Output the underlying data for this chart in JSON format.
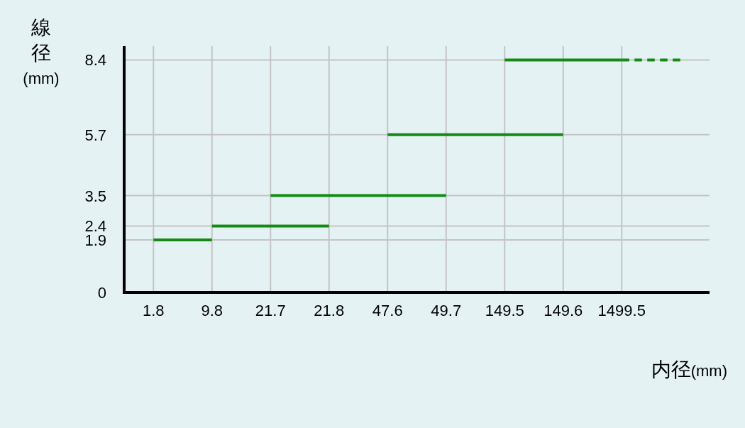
{
  "chart_data": {
    "type": "line",
    "xlabel": "内径(mm)",
    "ylabel": "線径(mm)",
    "categories": [
      "1.8",
      "9.8",
      "21.7",
      "21.8",
      "47.6",
      "49.7",
      "149.5",
      "149.6",
      "1499.5",
      null
    ],
    "ylim": [
      0,
      8.9
    ],
    "yticks": [
      0,
      1.9,
      2.4,
      3.5,
      5.7,
      8.4
    ],
    "grid": true,
    "series": [
      {
        "values": [
          1.9,
          1.9,
          null,
          null,
          null,
          null,
          null,
          null,
          null,
          null
        ],
        "color": "#138a13"
      },
      {
        "values": [
          null,
          2.4,
          null,
          2.4,
          null,
          null,
          null,
          null,
          null,
          null
        ],
        "color": "#138a13"
      },
      {
        "values": [
          null,
          null,
          3.5,
          null,
          null,
          3.5,
          null,
          null,
          null,
          null
        ],
        "color": "#138a13"
      },
      {
        "values": [
          null,
          null,
          null,
          null,
          5.7,
          null,
          null,
          5.7,
          null,
          null
        ],
        "color": "#138a13"
      },
      {
        "values": [
          null,
          null,
          null,
          null,
          null,
          null,
          8.4,
          null,
          8.4,
          null
        ],
        "color": "#138a13"
      },
      {
        "values": [
          null,
          null,
          null,
          null,
          null,
          null,
          null,
          null,
          8.4,
          8.4
        ],
        "color": "#138a13",
        "line_style": "dashed"
      }
    ]
  }
}
